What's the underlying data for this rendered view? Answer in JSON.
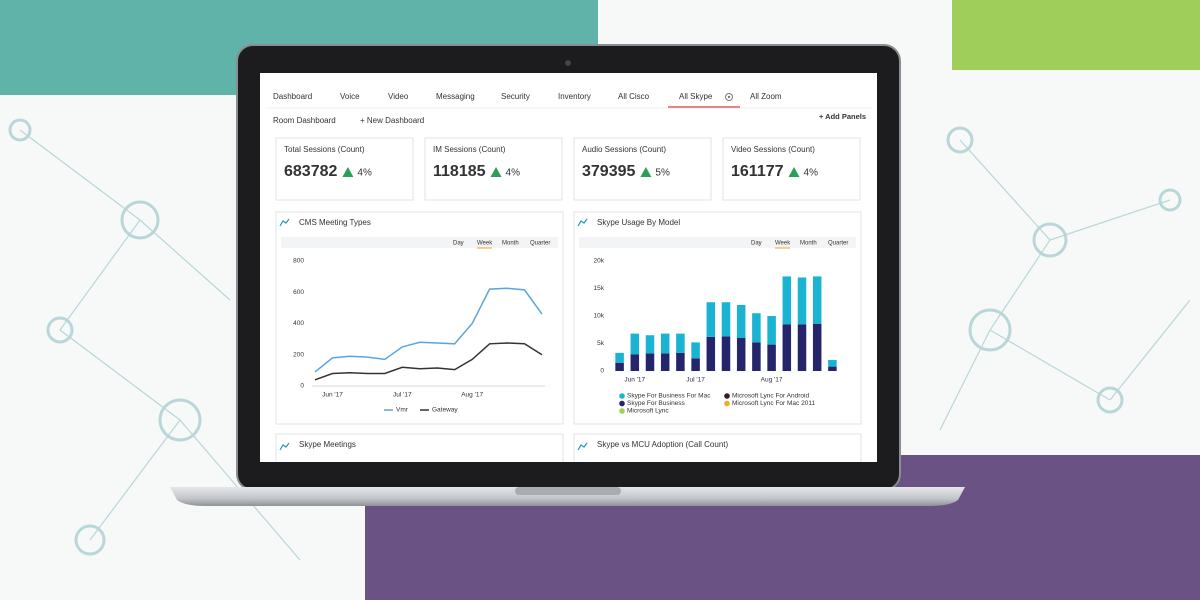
{
  "tabs": [
    "Dashboard",
    "Voice",
    "Video",
    "Messaging",
    "Security",
    "Inventory",
    "All Cisco",
    "All Skype",
    "All Zoom"
  ],
  "active_tab": "All Skype",
  "sub_tabs": [
    "Room Dashboard",
    "+ New Dashboard"
  ],
  "add_panels": "+ Add Panels",
  "kpis": [
    {
      "label": "Total Sessions (Count)",
      "value": 683782,
      "change": "4%"
    },
    {
      "label": "IM Sessions (Count)",
      "value": 118185,
      "change": "4%"
    },
    {
      "label": "Audio Sessions (Count)",
      "value": 379395,
      "change": "5%"
    },
    {
      "label": "Video Sessions (Count)",
      "value": 161177,
      "change": "4%"
    }
  ],
  "chart_data": [
    {
      "type": "line",
      "title": "CMS Meeting Types",
      "time_ranges": [
        "Day",
        "Week",
        "Month",
        "Quarter"
      ],
      "active_range": "Week",
      "categories": [
        null,
        "Jun '17",
        null,
        null,
        null,
        "Jul '17",
        null,
        null,
        null,
        "Aug '17",
        null,
        null,
        null,
        null
      ],
      "series": [
        {
          "name": "Vmr",
          "color": "#5aa6dc",
          "values": [
            90,
            180,
            190,
            185,
            170,
            250,
            280,
            275,
            270,
            400,
            620,
            625,
            615,
            460
          ]
        },
        {
          "name": "Gateway",
          "color": "#333333",
          "values": [
            40,
            80,
            85,
            80,
            80,
            120,
            110,
            115,
            105,
            170,
            270,
            275,
            270,
            200
          ]
        }
      ],
      "ylim": [
        0,
        800
      ],
      "yticks": [
        0,
        200,
        400,
        600,
        800
      ],
      "grid": false
    },
    {
      "type": "bar",
      "title": "Skype Usage By Model",
      "time_ranges": [
        "Day",
        "Week",
        "Month",
        "Quarter"
      ],
      "active_range": "Week",
      "categories": [
        null,
        "Jun '17",
        null,
        null,
        null,
        "Jul '17",
        null,
        null,
        null,
        null,
        "Aug '17",
        null,
        null,
        null,
        null
      ],
      "series": [
        {
          "name": "Skype For Business For Mac",
          "color": "#1ab3d1",
          "values": [
            1800,
            3800,
            3300,
            3600,
            3500,
            2900,
            6300,
            6200,
            6000,
            5300,
            5200,
            8700,
            8500,
            8600,
            1200
          ]
        },
        {
          "name": "Skype For Business",
          "color": "#25256b",
          "values": [
            1500,
            3000,
            3200,
            3200,
            3300,
            2300,
            6200,
            6300,
            6000,
            5200,
            4800,
            8500,
            8500,
            8600,
            800
          ]
        },
        {
          "name": "Microsoft Lync For Android",
          "color": "#3b1c1c",
          "values": [
            0,
            0,
            0,
            0,
            0,
            0,
            0,
            0,
            0,
            0,
            0,
            0,
            0,
            0,
            0
          ]
        },
        {
          "name": "Microsoft Lync For Mac 2011",
          "color": "#e8b020",
          "values": [
            0,
            0,
            0,
            0,
            0,
            0,
            0,
            0,
            0,
            0,
            0,
            0,
            0,
            0,
            0
          ]
        },
        {
          "name": "Microsoft Lync",
          "color": "#9bd35a",
          "values": [
            0,
            0,
            0,
            0,
            0,
            0,
            0,
            0,
            0,
            0,
            0,
            0,
            0,
            0,
            0
          ]
        }
      ],
      "stacked": true,
      "ylim": [
        0,
        20000
      ],
      "yticks": [
        {
          "value": 0,
          "label": "0"
        },
        {
          "value": 5000,
          "label": "5k"
        },
        {
          "value": 10000,
          "label": "10k"
        },
        {
          "value": 15000,
          "label": "15k"
        },
        {
          "value": 20000,
          "label": "20k"
        }
      ],
      "grid": false
    }
  ],
  "bottom_panels": [
    "Skype Meetings",
    "Skype vs MCU Adoption (Call Count)"
  ]
}
